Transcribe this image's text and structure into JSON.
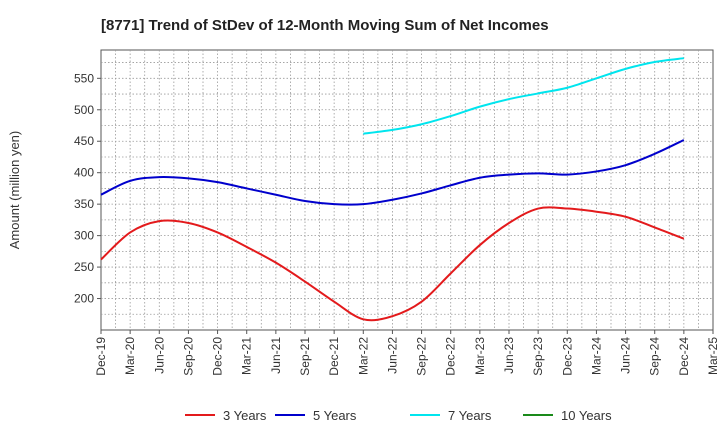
{
  "chart_data": {
    "type": "line",
    "title": "[8771]  Trend of StDev of 12-Month Moving Sum of Net Incomes",
    "ylabel": "Amount (million yen)",
    "xlabel": "",
    "ylim": [
      150,
      595
    ],
    "yticks": [
      200,
      250,
      300,
      350,
      400,
      450,
      500,
      550
    ],
    "grid": true,
    "legend_position": "bottom",
    "categories": [
      "Dec-19",
      "Mar-20",
      "Jun-20",
      "Sep-20",
      "Dec-20",
      "Mar-21",
      "Jun-21",
      "Sep-21",
      "Dec-21",
      "Mar-22",
      "Jun-22",
      "Sep-22",
      "Dec-22",
      "Mar-23",
      "Jun-23",
      "Sep-23",
      "Dec-23",
      "Mar-24",
      "Jun-24",
      "Sep-24",
      "Dec-24",
      "Mar-25"
    ],
    "series": [
      {
        "name": "3 Years",
        "color": "#e31a1c",
        "values": [
          262,
          305,
          323,
          320,
          305,
          282,
          257,
          227,
          195,
          167,
          172,
          195,
          240,
          285,
          320,
          343,
          343,
          338,
          330,
          313,
          295,
          null
        ]
      },
      {
        "name": "5 Years",
        "color": "#0000cc",
        "values": [
          365,
          387,
          393,
          391,
          385,
          375,
          365,
          355,
          350,
          350,
          357,
          367,
          380,
          392,
          397,
          399,
          397,
          402,
          412,
          430,
          452,
          null
        ]
      },
      {
        "name": "7 Years",
        "color": "#00e5ee",
        "values": [
          null,
          null,
          null,
          null,
          null,
          null,
          null,
          null,
          null,
          462,
          468,
          477,
          490,
          505,
          517,
          526,
          535,
          550,
          565,
          576,
          582,
          null
        ]
      },
      {
        "name": "10 Years",
        "color": "#1a8a1a",
        "values": [
          null,
          null,
          null,
          null,
          null,
          null,
          null,
          null,
          null,
          null,
          null,
          null,
          null,
          null,
          null,
          null,
          null,
          null,
          null,
          null,
          null,
          null
        ]
      }
    ]
  }
}
